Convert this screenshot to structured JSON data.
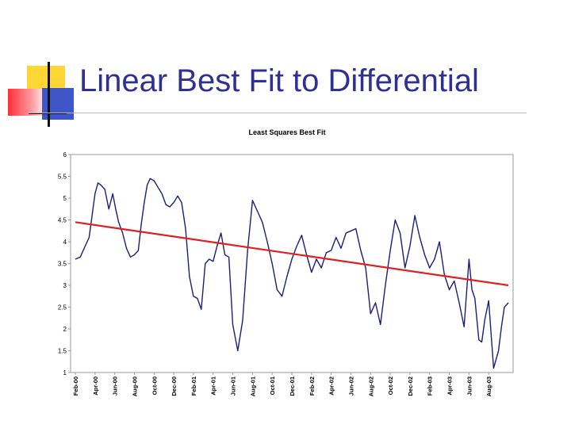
{
  "slide": {
    "title": "Linear Best Fit to Differential",
    "colors": {
      "title": "#2e3191",
      "series": "#1b1f7a",
      "fit": "#e02020"
    }
  },
  "chart_data": {
    "type": "line",
    "title": "Least Squares Best Fit",
    "xlabel": "",
    "ylabel": "",
    "ylim": [
      1,
      6
    ],
    "yticks": [
      1,
      1.5,
      2,
      2.5,
      3,
      3.5,
      4,
      4.5,
      5,
      5.5,
      6
    ],
    "xticks": [
      "Feb-00",
      "Apr-00",
      "Jun-00",
      "Aug-00",
      "Oct-00",
      "Dec-00",
      "Feb-01",
      "Apr-01",
      "Jun-01",
      "Aug-01",
      "Oct-01",
      "Dec-01",
      "Feb-02",
      "Apr-02",
      "Jun-02",
      "Aug-02",
      "Oct-02",
      "Dec-02",
      "Feb-03",
      "Apr-03",
      "Jun-03",
      "Aug-03"
    ],
    "x_range_months": [
      0,
      44
    ],
    "grid": false,
    "legend": "none",
    "series": [
      {
        "name": "Differential",
        "x": [
          0,
          0.5,
          1,
          1.4,
          1.7,
          2,
          2.3,
          2.6,
          3,
          3.4,
          3.8,
          4.1,
          4.4,
          4.8,
          5.2,
          5.6,
          6,
          6.4,
          6.7,
          7,
          7.3,
          7.6,
          8,
          8.4,
          8.8,
          9.2,
          9.6,
          10,
          10.4,
          10.8,
          11.2,
          11.6,
          12,
          12.4,
          12.8,
          13.2,
          13.6,
          14,
          14.4,
          14.8,
          15.2,
          15.6,
          16,
          16.5,
          17,
          17.5,
          18,
          18.5,
          19,
          19.5,
          20,
          20.5,
          21,
          21.5,
          22,
          22.5,
          23,
          23.5,
          24,
          24.5,
          25,
          25.5,
          26,
          26.5,
          27,
          27.5,
          28,
          28.5,
          29,
          29.5,
          30,
          30.5,
          31,
          31.5,
          32,
          32.5,
          33,
          33.5,
          34,
          34.5,
          35,
          35.5,
          36,
          36.5,
          37,
          37.5,
          38,
          38.5,
          39,
          39.5,
          40,
          40.3,
          40.6,
          41,
          41.3,
          41.6,
          42,
          42.5,
          43,
          43.3,
          43.6,
          44
        ],
        "values": [
          3.6,
          3.65,
          3.9,
          4.1,
          4.6,
          5.1,
          5.35,
          5.3,
          5.2,
          4.75,
          5.1,
          4.75,
          4.45,
          4.2,
          3.85,
          3.65,
          3.7,
          3.8,
          4.4,
          4.9,
          5.3,
          5.45,
          5.4,
          5.25,
          5.1,
          4.85,
          4.8,
          4.9,
          5.05,
          4.9,
          4.3,
          3.2,
          2.75,
          2.7,
          2.45,
          3.5,
          3.6,
          3.55,
          3.9,
          4.2,
          3.7,
          3.65,
          2.1,
          1.5,
          2.2,
          3.8,
          4.95,
          4.7,
          4.45,
          4.0,
          3.5,
          2.9,
          2.75,
          3.2,
          3.6,
          3.9,
          4.15,
          3.7,
          3.3,
          3.6,
          3.4,
          3.75,
          3.8,
          4.1,
          3.85,
          4.2,
          4.25,
          4.3,
          3.8,
          3.4,
          2.35,
          2.6,
          2.1,
          3.0,
          3.8,
          4.5,
          4.2,
          3.4,
          3.9,
          4.6,
          4.1,
          3.7,
          3.4,
          3.6,
          4.0,
          3.25,
          2.9,
          3.1,
          2.6,
          2.05,
          3.6,
          2.9,
          2.7,
          1.75,
          1.7,
          2.2,
          2.65,
          1.1,
          1.5,
          2.05,
          2.5,
          2.6
        ]
      },
      {
        "name": "Least Squares Best Fit",
        "x": [
          0,
          44
        ],
        "values": [
          4.45,
          3.0
        ]
      }
    ]
  }
}
